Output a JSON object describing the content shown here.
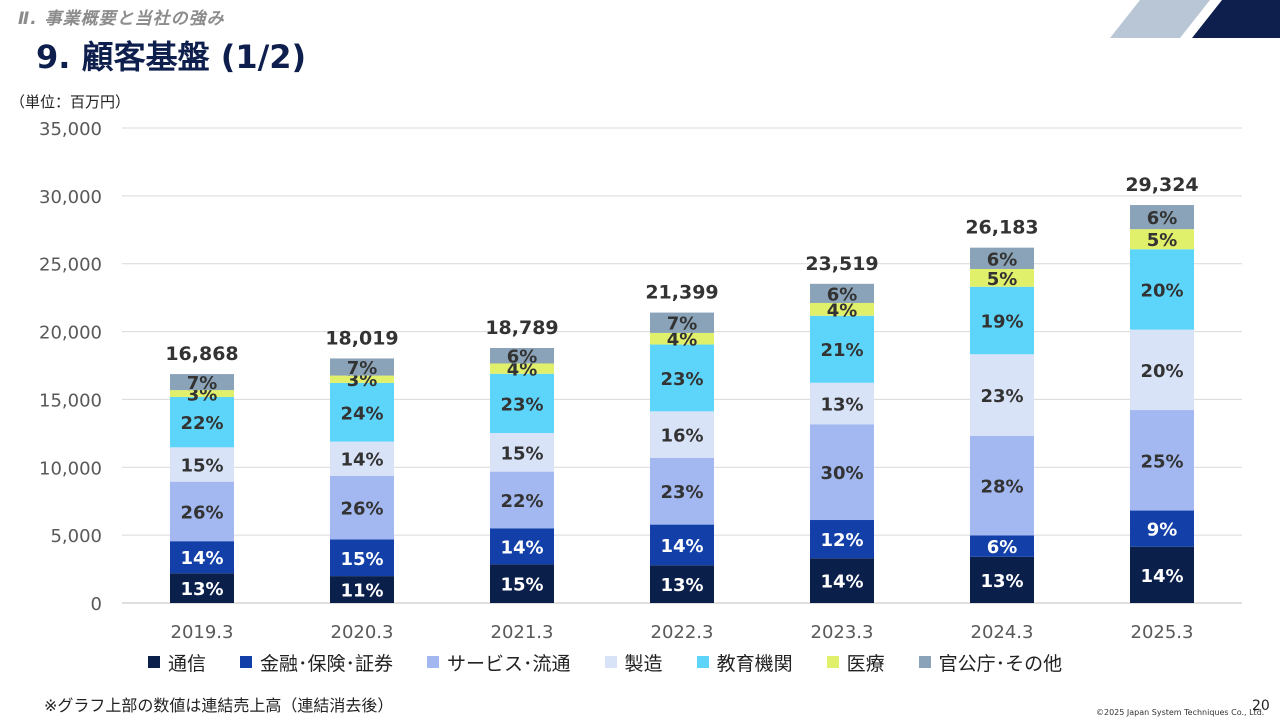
{
  "header": {
    "section": "Ⅱ. 事業概要と当社の強み",
    "title": "9. 顧客基盤 (1/2)"
  },
  "colors": {
    "title": "#0e1f4d",
    "deco_light": "#b9c6d6",
    "deco_dark": "#0e1f4d"
  },
  "chart_data": {
    "type": "bar",
    "stacked": true,
    "unit_label": "（単位：百万円）",
    "categories": [
      "2019.3",
      "2020.3",
      "2021.3",
      "2022.3",
      "2023.3",
      "2024.3",
      "2025.3"
    ],
    "totals": [
      16868,
      18019,
      18789,
      21399,
      23519,
      26183,
      29324
    ],
    "total_labels": [
      "16,868",
      "18,019",
      "18,789",
      "21,399",
      "23,519",
      "26,183",
      "29,324"
    ],
    "ylim": [
      0,
      35000
    ],
    "yticks": [
      0,
      5000,
      10000,
      15000,
      20000,
      25000,
      30000,
      35000
    ],
    "ytick_labels": [
      "0",
      "5,000",
      "10,000",
      "15,000",
      "20,000",
      "25,000",
      "30,000",
      "35,000"
    ],
    "grid": true,
    "legend_position": "bottom",
    "series": [
      {
        "name": "通信",
        "color": "#0b1f4b",
        "text_color": "#ffffff",
        "percent": [
          13,
          11,
          15,
          13,
          14,
          13,
          14
        ]
      },
      {
        "name": "金融･保険･証券",
        "color": "#1240a8",
        "text_color": "#ffffff",
        "percent": [
          14,
          15,
          14,
          14,
          12,
          6,
          9
        ]
      },
      {
        "name": "サービス･流通",
        "color": "#a3b8f0",
        "text_color": "#333333",
        "percent": [
          26,
          26,
          22,
          23,
          30,
          28,
          25
        ]
      },
      {
        "name": "製造",
        "color": "#d9e3f8",
        "text_color": "#333333",
        "percent": [
          15,
          14,
          15,
          16,
          13,
          23,
          20
        ]
      },
      {
        "name": "教育機関",
        "color": "#5dd5fb",
        "text_color": "#333333",
        "percent": [
          22,
          24,
          23,
          23,
          21,
          19,
          20
        ]
      },
      {
        "name": "医療",
        "color": "#e1f06a",
        "text_color": "#333333",
        "percent": [
          3,
          3,
          4,
          4,
          4,
          5,
          5
        ]
      },
      {
        "name": "官公庁･その他",
        "color": "#8aa3b8",
        "text_color": "#333333",
        "percent": [
          7,
          7,
          6,
          7,
          6,
          6,
          6
        ]
      }
    ]
  },
  "footer": {
    "note": "※グラフ上部の数値は連結売上高（連結消去後）",
    "copyright": "©2025 Japan System Techniques Co., Ltd.",
    "page": "20"
  }
}
